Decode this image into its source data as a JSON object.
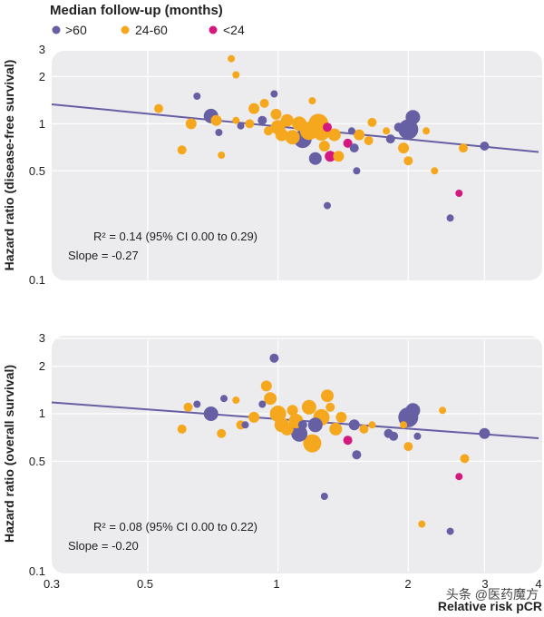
{
  "chart_data": [
    {
      "type": "scatter",
      "title": "",
      "ylabel": "Hazard ratio (disease-free survival)",
      "xlabel": "",
      "x_scale": "log",
      "y_scale": "log",
      "xlim": [
        0.3,
        4
      ],
      "ylim": [
        0.1,
        3
      ],
      "yticks": [
        0.1,
        0.5,
        1,
        2,
        3
      ],
      "grid": true,
      "fit_line": {
        "x": [
          0.3,
          4
        ],
        "y": [
          1.33,
          0.66
        ]
      },
      "annotation": {
        "r2_label": "R² = 0.14 (95% CI 0.00 to 0.29)",
        "slope_label": "Slope = -0.27"
      },
      "points": [
        {
          "x": 0.53,
          "y": 1.25,
          "group": "24-60",
          "size": 5
        },
        {
          "x": 0.6,
          "y": 0.68,
          "group": "24-60",
          "size": 5
        },
        {
          "x": 0.63,
          "y": 1.0,
          "group": "24-60",
          "size": 6
        },
        {
          "x": 0.65,
          "y": 1.5,
          "group": ">60",
          "size": 4
        },
        {
          "x": 0.7,
          "y": 1.12,
          "group": ">60",
          "size": 8
        },
        {
          "x": 0.72,
          "y": 1.05,
          "group": "24-60",
          "size": 6
        },
        {
          "x": 0.73,
          "y": 0.88,
          "group": ">60",
          "size": 4
        },
        {
          "x": 0.74,
          "y": 0.63,
          "group": "24-60",
          "size": 4
        },
        {
          "x": 0.78,
          "y": 2.6,
          "group": "24-60",
          "size": 4
        },
        {
          "x": 0.8,
          "y": 2.05,
          "group": "24-60",
          "size": 4
        },
        {
          "x": 0.8,
          "y": 1.05,
          "group": "24-60",
          "size": 4
        },
        {
          "x": 0.82,
          "y": 0.97,
          "group": ">60",
          "size": 4
        },
        {
          "x": 0.86,
          "y": 1.0,
          "group": "24-60",
          "size": 5
        },
        {
          "x": 0.88,
          "y": 1.25,
          "group": "24-60",
          "size": 6
        },
        {
          "x": 0.92,
          "y": 1.05,
          "group": ">60",
          "size": 5
        },
        {
          "x": 0.93,
          "y": 1.35,
          "group": "24-60",
          "size": 5
        },
        {
          "x": 0.95,
          "y": 0.9,
          "group": "24-60",
          "size": 5
        },
        {
          "x": 0.98,
          "y": 1.55,
          "group": ">60",
          "size": 4
        },
        {
          "x": 0.99,
          "y": 1.15,
          "group": "24-60",
          "size": 6
        },
        {
          "x": 1.0,
          "y": 0.95,
          "group": "24-60",
          "size": 8
        },
        {
          "x": 1.02,
          "y": 0.85,
          "group": "24-60",
          "size": 7
        },
        {
          "x": 1.05,
          "y": 1.05,
          "group": "24-60",
          "size": 7
        },
        {
          "x": 1.08,
          "y": 0.82,
          "group": "24-60",
          "size": 8
        },
        {
          "x": 1.12,
          "y": 1.0,
          "group": "24-60",
          "size": 8
        },
        {
          "x": 1.14,
          "y": 0.8,
          "group": ">60",
          "size": 10
        },
        {
          "x": 1.18,
          "y": 0.9,
          "group": "24-60",
          "size": 10
        },
        {
          "x": 1.2,
          "y": 1.4,
          "group": "24-60",
          "size": 4
        },
        {
          "x": 1.22,
          "y": 0.6,
          "group": ">60",
          "size": 7
        },
        {
          "x": 1.24,
          "y": 1.0,
          "group": "24-60",
          "size": 11
        },
        {
          "x": 1.26,
          "y": 0.88,
          "group": "24-60",
          "size": 9
        },
        {
          "x": 1.28,
          "y": 0.72,
          "group": "24-60",
          "size": 6
        },
        {
          "x": 1.3,
          "y": 0.95,
          "group": "<24",
          "size": 5
        },
        {
          "x": 1.3,
          "y": 0.3,
          "group": ">60",
          "size": 4
        },
        {
          "x": 1.32,
          "y": 0.62,
          "group": "<24",
          "size": 6
        },
        {
          "x": 1.35,
          "y": 0.85,
          "group": "24-60",
          "size": 7
        },
        {
          "x": 1.38,
          "y": 0.62,
          "group": "24-60",
          "size": 6
        },
        {
          "x": 1.45,
          "y": 0.75,
          "group": "<24",
          "size": 5
        },
        {
          "x": 1.48,
          "y": 0.9,
          "group": ">60",
          "size": 4
        },
        {
          "x": 1.5,
          "y": 0.7,
          "group": ">60",
          "size": 5
        },
        {
          "x": 1.52,
          "y": 0.5,
          "group": ">60",
          "size": 4
        },
        {
          "x": 1.54,
          "y": 0.85,
          "group": "24-60",
          "size": 6
        },
        {
          "x": 1.62,
          "y": 0.78,
          "group": "24-60",
          "size": 5
        },
        {
          "x": 1.65,
          "y": 1.02,
          "group": "24-60",
          "size": 5
        },
        {
          "x": 1.78,
          "y": 0.9,
          "group": "24-60",
          "size": 4
        },
        {
          "x": 1.82,
          "y": 0.8,
          "group": ">60",
          "size": 5
        },
        {
          "x": 1.9,
          "y": 0.95,
          "group": ">60",
          "size": 5
        },
        {
          "x": 1.95,
          "y": 0.7,
          "group": "24-60",
          "size": 6
        },
        {
          "x": 2.0,
          "y": 0.58,
          "group": "24-60",
          "size": 5
        },
        {
          "x": 2.0,
          "y": 0.92,
          "group": ">60",
          "size": 11
        },
        {
          "x": 2.05,
          "y": 1.1,
          "group": ">60",
          "size": 8
        },
        {
          "x": 2.2,
          "y": 0.9,
          "group": "24-60",
          "size": 4
        },
        {
          "x": 2.3,
          "y": 0.5,
          "group": "24-60",
          "size": 4
        },
        {
          "x": 2.5,
          "y": 0.25,
          "group": ">60",
          "size": 4
        },
        {
          "x": 2.62,
          "y": 0.36,
          "group": "<24",
          "size": 4
        },
        {
          "x": 2.68,
          "y": 0.7,
          "group": "24-60",
          "size": 5
        },
        {
          "x": 3.0,
          "y": 0.72,
          "group": ">60",
          "size": 5
        }
      ]
    },
    {
      "type": "scatter",
      "title": "",
      "ylabel": "Hazard ratio (overall survival)",
      "xlabel": "Relative risk pCR",
      "x_scale": "log",
      "y_scale": "log",
      "xlim": [
        0.3,
        4
      ],
      "ylim": [
        0.1,
        3
      ],
      "yticks": [
        0.1,
        0.5,
        1,
        2,
        3
      ],
      "xticks": [
        0.3,
        0.5,
        1,
        2,
        3,
        4
      ],
      "grid": true,
      "fit_line": {
        "x": [
          0.3,
          4
        ],
        "y": [
          1.18,
          0.7
        ]
      },
      "annotation": {
        "r2_label": "R² = 0.08 (95% CI 0.00 to 0.22)",
        "slope_label": "Slope = -0.20"
      },
      "points": [
        {
          "x": 0.6,
          "y": 0.8,
          "group": "24-60",
          "size": 5
        },
        {
          "x": 0.62,
          "y": 1.1,
          "group": "24-60",
          "size": 5
        },
        {
          "x": 0.65,
          "y": 1.15,
          "group": ">60",
          "size": 4
        },
        {
          "x": 0.7,
          "y": 1.0,
          "group": ">60",
          "size": 8
        },
        {
          "x": 0.74,
          "y": 0.75,
          "group": "24-60",
          "size": 5
        },
        {
          "x": 0.75,
          "y": 1.25,
          "group": ">60",
          "size": 4
        },
        {
          "x": 0.8,
          "y": 1.22,
          "group": "24-60",
          "size": 4
        },
        {
          "x": 0.82,
          "y": 0.85,
          "group": "24-60",
          "size": 5
        },
        {
          "x": 0.84,
          "y": 0.85,
          "group": ">60",
          "size": 4
        },
        {
          "x": 0.88,
          "y": 0.95,
          "group": "24-60",
          "size": 6
        },
        {
          "x": 0.92,
          "y": 1.15,
          "group": ">60",
          "size": 4
        },
        {
          "x": 0.94,
          "y": 1.5,
          "group": "24-60",
          "size": 6
        },
        {
          "x": 0.96,
          "y": 1.25,
          "group": "24-60",
          "size": 7
        },
        {
          "x": 0.98,
          "y": 2.25,
          "group": ">60",
          "size": 5
        },
        {
          "x": 1.0,
          "y": 1.0,
          "group": "24-60",
          "size": 9
        },
        {
          "x": 1.02,
          "y": 0.85,
          "group": "24-60",
          "size": 8
        },
        {
          "x": 1.05,
          "y": 0.8,
          "group": "24-60",
          "size": 7
        },
        {
          "x": 1.08,
          "y": 1.05,
          "group": "24-60",
          "size": 6
        },
        {
          "x": 1.1,
          "y": 0.9,
          "group": "24-60",
          "size": 8
        },
        {
          "x": 1.12,
          "y": 0.75,
          "group": ">60",
          "size": 9
        },
        {
          "x": 1.14,
          "y": 0.85,
          "group": ">60",
          "size": 5
        },
        {
          "x": 1.18,
          "y": 1.1,
          "group": "24-60",
          "size": 8
        },
        {
          "x": 1.2,
          "y": 0.65,
          "group": "24-60",
          "size": 10
        },
        {
          "x": 1.22,
          "y": 0.85,
          "group": ">60",
          "size": 8
        },
        {
          "x": 1.26,
          "y": 0.95,
          "group": "24-60",
          "size": 9
        },
        {
          "x": 1.28,
          "y": 0.3,
          "group": ">60",
          "size": 4
        },
        {
          "x": 1.3,
          "y": 1.3,
          "group": "24-60",
          "size": 7
        },
        {
          "x": 1.32,
          "y": 1.1,
          "group": "24-60",
          "size": 5
        },
        {
          "x": 1.36,
          "y": 0.8,
          "group": "24-60",
          "size": 7
        },
        {
          "x": 1.4,
          "y": 0.95,
          "group": "24-60",
          "size": 6
        },
        {
          "x": 1.45,
          "y": 0.68,
          "group": "<24",
          "size": 5
        },
        {
          "x": 1.5,
          "y": 0.85,
          "group": ">60",
          "size": 6
        },
        {
          "x": 1.52,
          "y": 0.55,
          "group": ">60",
          "size": 5
        },
        {
          "x": 1.58,
          "y": 0.8,
          "group": "24-60",
          "size": 5
        },
        {
          "x": 1.65,
          "y": 0.85,
          "group": "24-60",
          "size": 4
        },
        {
          "x": 1.8,
          "y": 0.75,
          "group": ">60",
          "size": 5
        },
        {
          "x": 1.85,
          "y": 0.72,
          "group": ">60",
          "size": 5
        },
        {
          "x": 1.95,
          "y": 0.85,
          "group": "24-60",
          "size": 4
        },
        {
          "x": 2.0,
          "y": 0.62,
          "group": "24-60",
          "size": 5
        },
        {
          "x": 2.0,
          "y": 0.95,
          "group": ">60",
          "size": 11
        },
        {
          "x": 2.05,
          "y": 1.05,
          "group": ">60",
          "size": 8
        },
        {
          "x": 2.1,
          "y": 0.72,
          "group": ">60",
          "size": 4
        },
        {
          "x": 2.15,
          "y": 0.2,
          "group": "24-60",
          "size": 4
        },
        {
          "x": 2.4,
          "y": 1.05,
          "group": "24-60",
          "size": 4
        },
        {
          "x": 2.5,
          "y": 0.18,
          "group": ">60",
          "size": 4
        },
        {
          "x": 2.62,
          "y": 0.4,
          "group": "<24",
          "size": 4
        },
        {
          "x": 2.7,
          "y": 0.52,
          "group": "24-60",
          "size": 5
        },
        {
          "x": 3.0,
          "y": 0.75,
          "group": ">60",
          "size": 6
        }
      ]
    }
  ],
  "legend": {
    "title": "Median follow-up (months)",
    "items": [
      {
        "label": ">60",
        "color": "#675fa3"
      },
      {
        "label": "24-60",
        "color": "#f5a81e"
      },
      {
        "label": "<24",
        "color": "#d4187e"
      }
    ]
  },
  "colors": {
    ">60": "#675fa3",
    "24-60": "#f5a81e",
    "<24": "#d4187e",
    "fit": "#675fa3"
  },
  "xtick_labels": [
    "0.3",
    "0.5",
    "1",
    "2",
    "3",
    "4"
  ],
  "ytick_labels": [
    "3",
    "2",
    "1",
    "0.5",
    "0.1"
  ],
  "watermark": "头条 @医药魔方"
}
